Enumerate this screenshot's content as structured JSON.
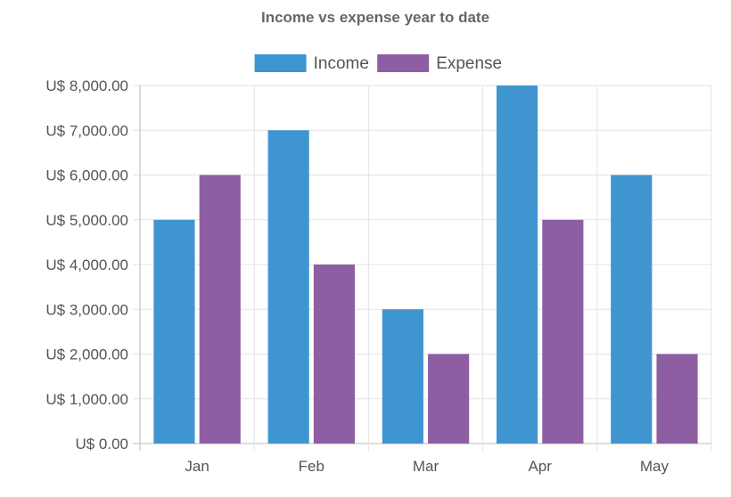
{
  "chart_data": {
    "type": "bar",
    "title": "Income vs expense year to date",
    "xlabel": "",
    "ylabel": "",
    "categories": [
      "Jan",
      "Feb",
      "Mar",
      "Apr",
      "May"
    ],
    "series": [
      {
        "name": "Income",
        "color": "#3f95d0",
        "values": [
          5000,
          7000,
          3000,
          8000,
          6000
        ]
      },
      {
        "name": "Expense",
        "color": "#8e5ea2",
        "values": [
          6000,
          4000,
          2000,
          5000,
          2000
        ]
      }
    ],
    "ylim": [
      0,
      8000
    ],
    "y_ticks": [
      {
        "value": 0,
        "label": "U$ 0.00"
      },
      {
        "value": 1000,
        "label": "U$ 1,000.00"
      },
      {
        "value": 2000,
        "label": "U$ 2,000.00"
      },
      {
        "value": 3000,
        "label": "U$ 3,000.00"
      },
      {
        "value": 4000,
        "label": "U$ 4,000.00"
      },
      {
        "value": 5000,
        "label": "U$ 5,000.00"
      },
      {
        "value": 6000,
        "label": "U$ 6,000.00"
      },
      {
        "value": 7000,
        "label": "U$ 7,000.00"
      },
      {
        "value": 8000,
        "label": "U$ 8,000.00"
      }
    ],
    "grid": true,
    "legend_position": "top"
  }
}
